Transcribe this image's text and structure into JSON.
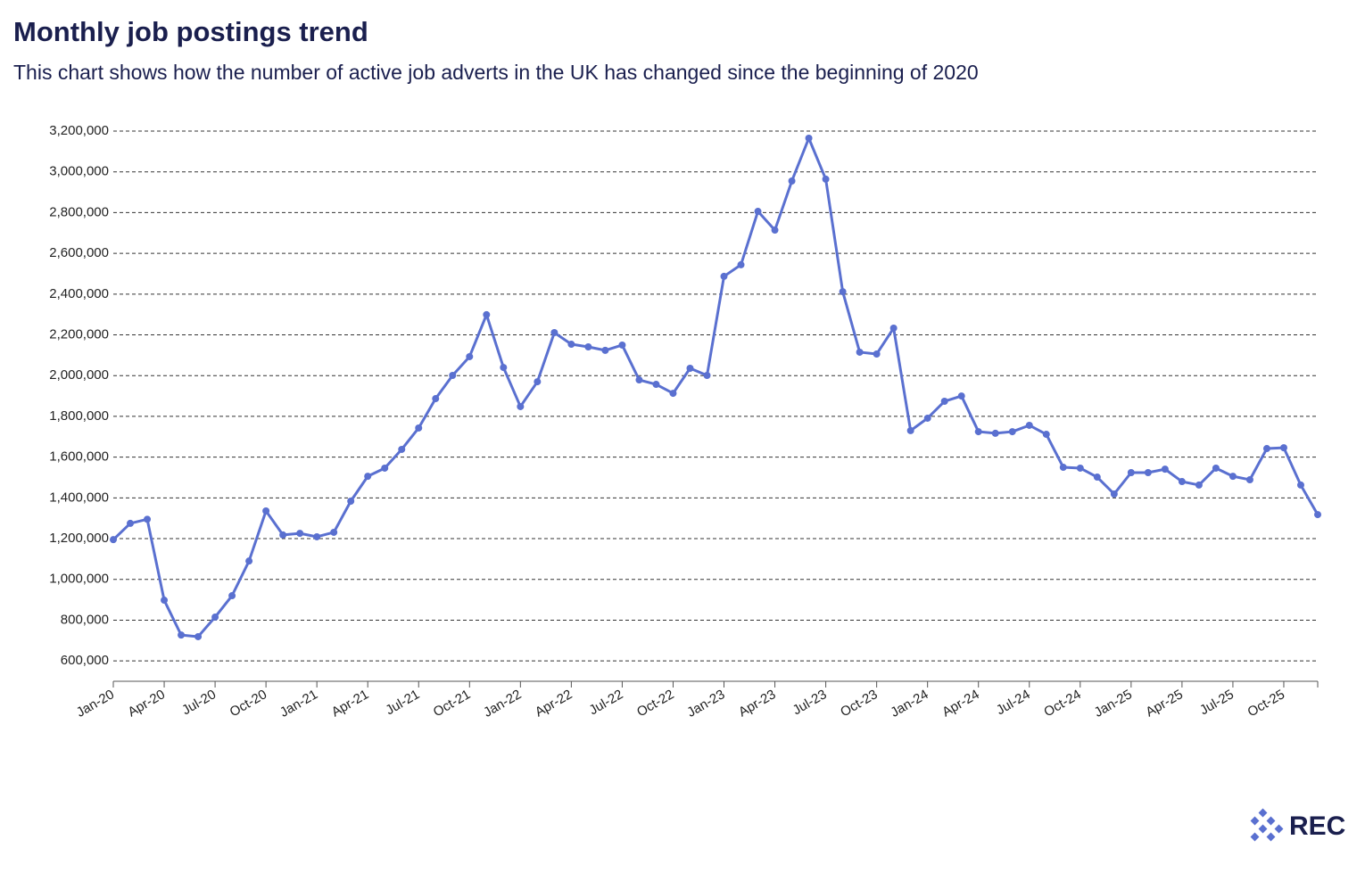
{
  "chart_data": {
    "type": "line",
    "title": "Monthly job postings trend",
    "subtitle": "This chart shows how the number of active job adverts in the UK has changed since the beginning of 2020",
    "categories": [
      "Jan-20",
      null,
      null,
      "Apr-20",
      null,
      null,
      "Jul-20",
      null,
      null,
      "Oct-20",
      null,
      null,
      "Jan-21",
      null,
      null,
      "Apr-21",
      null,
      null,
      "Jul-21",
      null,
      null,
      "Oct-21",
      null,
      null,
      "Jan-22",
      null,
      null,
      "Apr-22",
      null,
      null,
      "Jul-22",
      null,
      null,
      "Oct-22",
      null,
      null,
      "Jan-23",
      null,
      null,
      "Apr-23",
      null,
      null,
      "Jul-23",
      null,
      null,
      "Oct-23",
      null,
      null,
      "Jan-24",
      null,
      null,
      "Apr-24",
      null,
      null,
      "Jul-24",
      null,
      null,
      "Oct-24",
      null,
      null,
      "Jan-25",
      null,
      null,
      "Apr-25",
      null,
      null,
      "Jul-25",
      null,
      null,
      "Oct-25",
      null,
      null
    ],
    "series": [
      {
        "color": "#5a70d0",
        "values": [
          1195000,
          1275000,
          1295000,
          898000,
          727000,
          719000,
          815000,
          920000,
          1090000,
          1336000,
          1218000,
          1226000,
          1209000,
          1231000,
          1384000,
          1506000,
          1546000,
          1638000,
          1743000,
          1887000,
          2001000,
          2093000,
          2299000,
          2040000,
          1848000,
          1970000,
          2211000,
          2154000,
          2141000,
          2124000,
          2150000,
          1979000,
          1957000,
          1913000,
          2036000,
          2001000,
          2487000,
          2544000,
          2806000,
          2714000,
          2955000,
          3165000,
          2964000,
          2412000,
          2115000,
          2106000,
          2233000,
          1730000,
          1791000,
          1874000,
          1900000,
          1725000,
          1717000,
          1725000,
          1756000,
          1712000,
          1550000,
          1546000,
          1502000,
          1419000,
          1524000,
          1524000,
          1541000,
          1480000,
          1463000,
          1546000,
          1506000,
          1489000,
          1642000,
          1646000,
          1463000,
          1318000
        ]
      }
    ],
    "ylim": [
      500000,
      3200000
    ],
    "yticks": [
      {
        "value": 600000,
        "label": "600,000"
      },
      {
        "value": 800000,
        "label": "800,000"
      },
      {
        "value": 1000000,
        "label": "1,000,000"
      },
      {
        "value": 1200000,
        "label": "1,200,000"
      },
      {
        "value": 1400000,
        "label": "1,400,000"
      },
      {
        "value": 1600000,
        "label": "1,600,000"
      },
      {
        "value": 1800000,
        "label": "1,800,000"
      },
      {
        "value": 2000000,
        "label": "2,000,000"
      },
      {
        "value": 2200000,
        "label": "2,200,000"
      },
      {
        "value": 2400000,
        "label": "2,400,000"
      },
      {
        "value": 2600000,
        "label": "2,600,000"
      },
      {
        "value": 2800000,
        "label": "2,800,000"
      },
      {
        "value": 3000000,
        "label": "3,000,000"
      },
      {
        "value": 3200000,
        "label": "3,200,000"
      }
    ],
    "grid": true,
    "logo": "REC"
  }
}
